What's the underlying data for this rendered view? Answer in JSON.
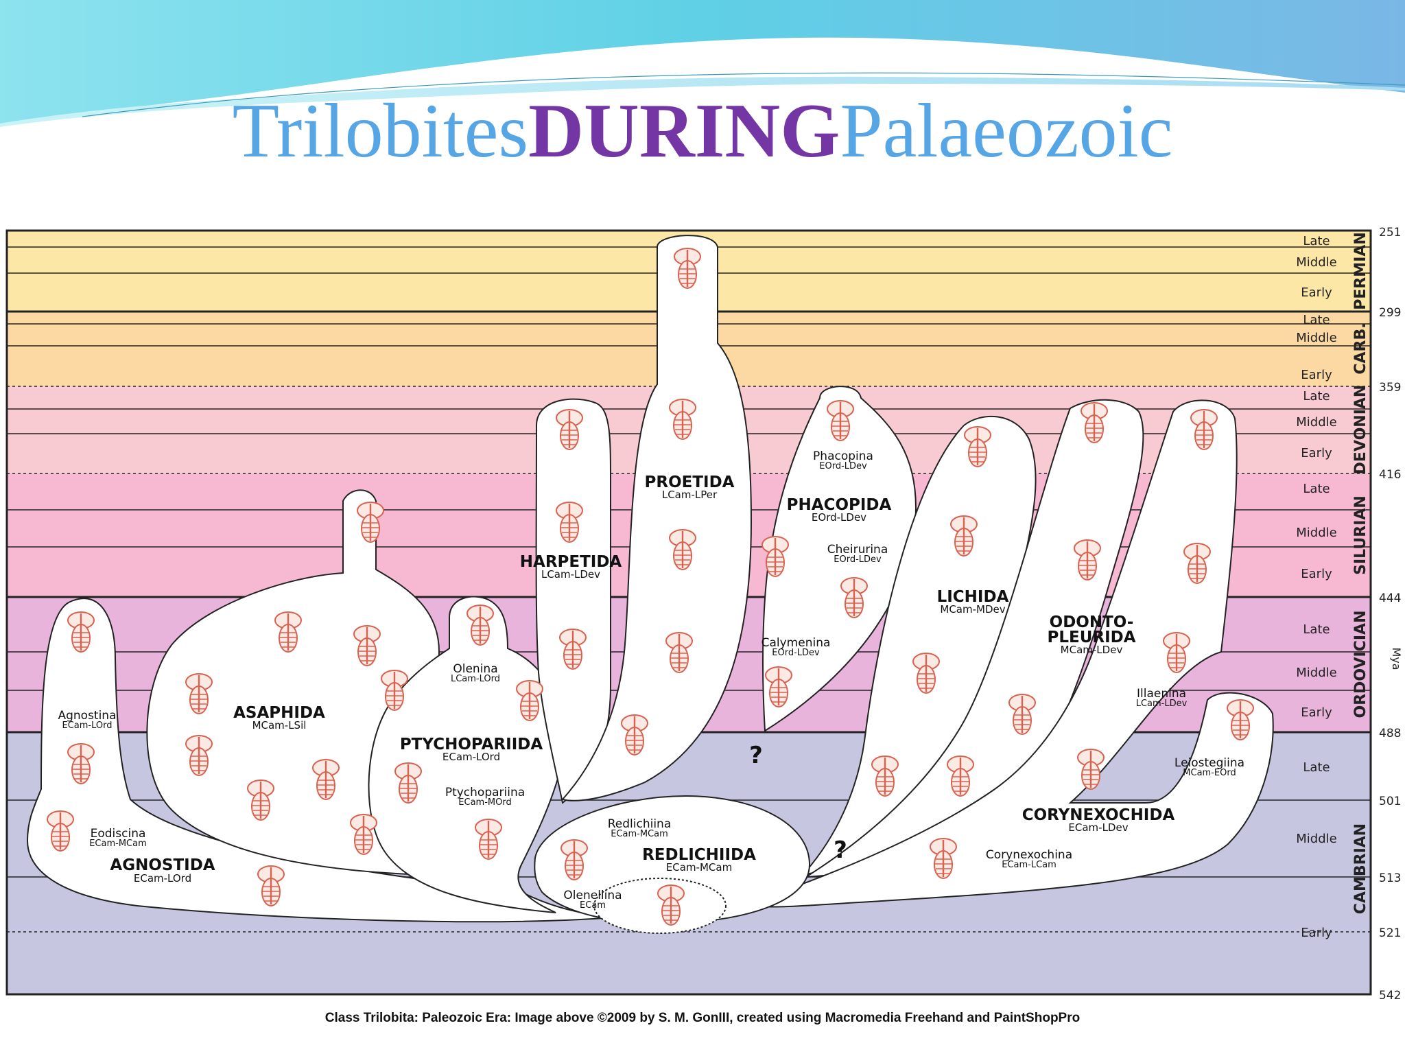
{
  "title": {
    "part1": "Trilobites ",
    "part2": "DURING",
    "part3": " Palaeozoic"
  },
  "caption": "Class Trilobita: Paleozoic Era: Image above ©2009 by S. M. GonIII, created using Macromedia Freehand and PaintShopPro",
  "colors": {
    "title_blue": "#56a6e6",
    "title_purple": "#7436a4",
    "fossil": "#d9614f",
    "permian": "#fde7a6",
    "carboniferous": "#fcd9a3",
    "devonian": "#f8cbd3",
    "silurian": "#f6b9d1",
    "ordovician": "#e9b4dc",
    "cambrian": "#c6c6e0"
  },
  "axis": {
    "unit": "Mya",
    "ticks": [
      "251",
      "299",
      "359",
      "416",
      "444",
      "488",
      "501",
      "513",
      "521",
      "542"
    ],
    "periods": [
      "PERMIAN",
      "CARB.",
      "DEVONIAN",
      "SILURIAN",
      "ORDOVICIAN",
      "CAMBRIAN"
    ],
    "epochs": [
      "Late",
      "Middle",
      "Early",
      "Late",
      "Middle",
      "Early",
      "Late",
      "Middle",
      "Early",
      "Late",
      "Middle",
      "Early",
      "Late",
      "Middle",
      "Early",
      "Late",
      "Middle",
      "Early"
    ]
  },
  "orders": [
    {
      "name": "AGNOSTIDA",
      "range": "ECam-LOrd"
    },
    {
      "name": "ASAPHIDA",
      "range": "MCam-LSil"
    },
    {
      "name": "PTYCHOPARIIDA",
      "range": "ECam-LOrd"
    },
    {
      "name": "HARPETIDA",
      "range": "LCam-LDev"
    },
    {
      "name": "PROETIDA",
      "range": "LCam-LPer"
    },
    {
      "name": "PHACOPIDA",
      "range": "EOrd-LDev"
    },
    {
      "name": "LICHIDA",
      "range": "MCam-MDev"
    },
    {
      "name": "ODONTO-",
      "range": ""
    },
    {
      "name": "PLEURIDA",
      "range": "MCam-LDev"
    },
    {
      "name": "REDLICHIIDA",
      "range": "ECam-MCam"
    },
    {
      "name": "CORYNEXOCHIDA",
      "range": "ECam-LDev"
    }
  ],
  "suborders": [
    {
      "name": "Agnostina",
      "range": "ECam-LOrd"
    },
    {
      "name": "Eodiscina",
      "range": "ECam-MCam"
    },
    {
      "name": "Olenina",
      "range": "LCam-LOrd"
    },
    {
      "name": "Ptychopariina",
      "range": "ECam-MOrd"
    },
    {
      "name": "Phacopina",
      "range": "EOrd-LDev"
    },
    {
      "name": "Cheirurina",
      "range": "EOrd-LDev"
    },
    {
      "name": "Calymenina",
      "range": "EOrd-LDev"
    },
    {
      "name": "Illaenina",
      "range": "LCam-LDev"
    },
    {
      "name": "Leiostegiina",
      "range": "MCam-EOrd"
    },
    {
      "name": "Redlichiina",
      "range": "ECam-MCam"
    },
    {
      "name": "Olenellina",
      "range": "ECam"
    },
    {
      "name": "Corynexochina",
      "range": "ECam-LCam"
    }
  ],
  "unknown_marks": [
    "?",
    "?"
  ]
}
